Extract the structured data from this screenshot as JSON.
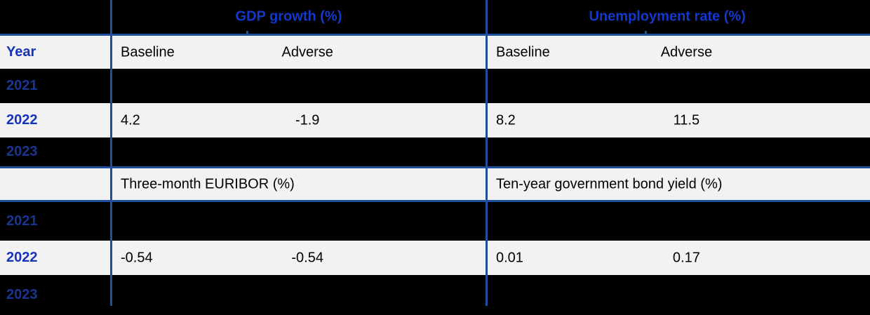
{
  "colors": {
    "row_light": "#f2f2f2",
    "row_dark": "#000000",
    "line_blue": "#1f4e9c",
    "header_text": "#1338cc",
    "year_text": "#1633be",
    "year_text_dark": "#1a3590",
    "value_text": "#000000"
  },
  "table": {
    "year_header": "Year",
    "sections": [
      {
        "groups": [
          {
            "title": "GDP growth (%)",
            "baseline_label": "Baseline",
            "adverse_label": "Adverse"
          },
          {
            "title": "Unemployment rate (%)",
            "baseline_label": "Baseline",
            "adverse_label": "Adverse"
          }
        ],
        "rows": [
          {
            "year": "2021",
            "redacted": true
          },
          {
            "year": "2022",
            "redacted": false,
            "g1_baseline": "4.2",
            "g1_adverse": "-1.9",
            "g2_baseline": "8.2",
            "g2_adverse": "11.5"
          },
          {
            "year": "2023",
            "redacted": true
          }
        ]
      },
      {
        "groups": [
          {
            "title": "Three-month EURIBOR (%)"
          },
          {
            "title": "Ten-year government bond yield (%)"
          }
        ],
        "rows": [
          {
            "year": "2021",
            "redacted": true
          },
          {
            "year": "2022",
            "redacted": false,
            "g1_baseline": "-0.54",
            "g1_adverse": "-0.54",
            "g2_baseline": "0.01",
            "g2_adverse": "0.17"
          },
          {
            "year": "2023",
            "redacted": true
          }
        ]
      }
    ]
  },
  "chart_data": {
    "type": "table",
    "sections": [
      {
        "column_groups": [
          "GDP growth (%)",
          "Unemployment rate (%)"
        ],
        "columns": [
          "Year",
          "Baseline",
          "Adverse",
          "Baseline",
          "Adverse"
        ],
        "rows": [
          [
            "2021",
            null,
            null,
            null,
            null
          ],
          [
            "2022",
            4.2,
            -1.9,
            8.2,
            11.5
          ],
          [
            "2023",
            null,
            null,
            null,
            null
          ]
        ]
      },
      {
        "column_groups": [
          "Three-month EURIBOR (%)",
          "Ten-year government bond yield (%)"
        ],
        "columns": [
          "Year",
          "Baseline",
          "Adverse",
          "Baseline",
          "Adverse"
        ],
        "rows": [
          [
            "2021",
            null,
            null,
            null,
            null
          ],
          [
            "2022",
            -0.54,
            -0.54,
            0.01,
            0.17
          ],
          [
            "2023",
            null,
            null,
            null,
            null
          ]
        ]
      }
    ]
  }
}
